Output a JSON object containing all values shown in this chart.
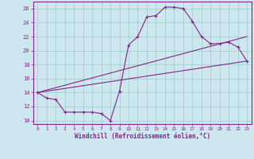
{
  "title": "",
  "xlabel": "Windchill (Refroidissement éolien,°C)",
  "bg_color": "#cce8ee",
  "line_color": "#882288",
  "grid_color": "#99cccc",
  "ylim": [
    9.5,
    27.0
  ],
  "xlim": [
    -0.5,
    23.5
  ],
  "yticks": [
    10,
    12,
    14,
    16,
    18,
    20,
    22,
    24,
    26
  ],
  "xticks": [
    0,
    1,
    2,
    3,
    4,
    5,
    6,
    7,
    8,
    9,
    10,
    11,
    12,
    13,
    14,
    15,
    16,
    17,
    18,
    19,
    20,
    21,
    22,
    23
  ],
  "curve1_x": [
    0,
    1,
    2,
    3,
    4,
    5,
    6,
    7,
    8,
    9,
    10,
    11,
    12,
    13,
    14,
    15,
    16,
    17,
    18,
    19,
    20,
    21,
    22,
    23
  ],
  "curve1_y": [
    14.0,
    13.2,
    13.0,
    11.2,
    11.2,
    11.2,
    11.2,
    11.0,
    10.0,
    14.2,
    20.8,
    22.0,
    24.8,
    25.0,
    26.2,
    26.2,
    26.0,
    24.2,
    22.0,
    21.0,
    21.0,
    21.2,
    20.5,
    18.5
  ],
  "curve2_x": [
    0,
    23
  ],
  "curve2_y": [
    14.0,
    18.5
  ],
  "curve3_x": [
    0,
    23
  ],
  "curve3_y": [
    14.0,
    22.0
  ]
}
